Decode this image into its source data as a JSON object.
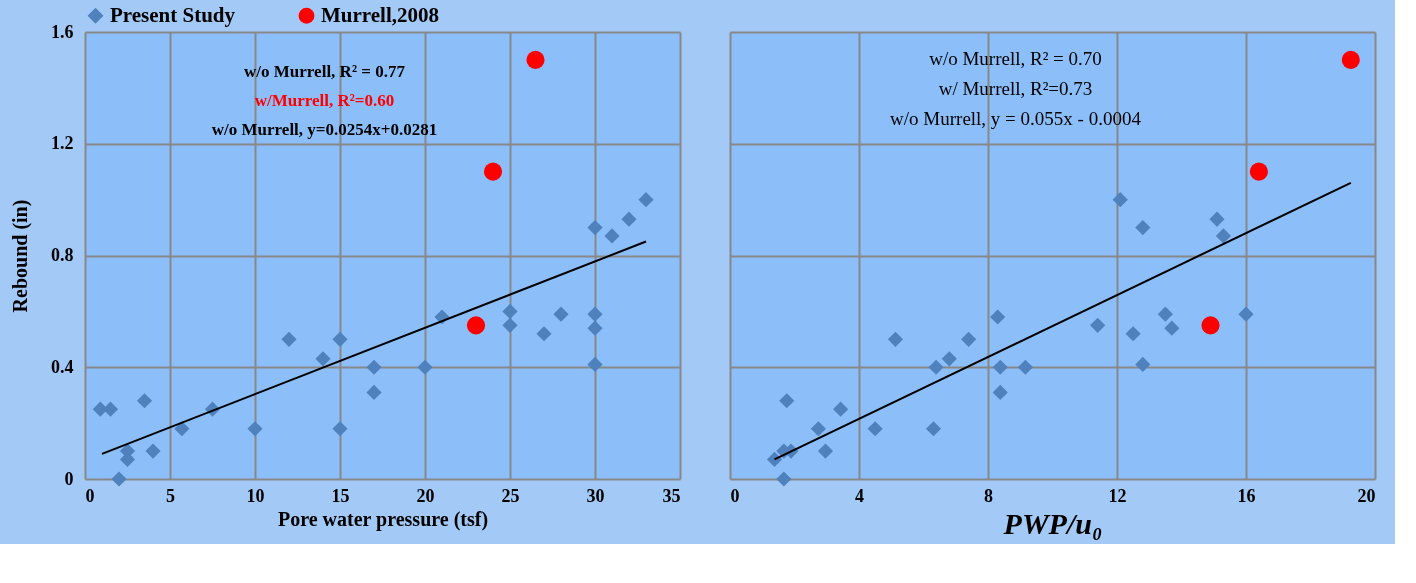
{
  "chart_data": [
    {
      "type": "scatter",
      "xlabel": "Pore water pressure (tsf)",
      "ylabel": "Rebound (in)",
      "xlim": [
        0,
        35
      ],
      "xticks": [
        0,
        5,
        10,
        15,
        20,
        25,
        30,
        35
      ],
      "ylim": [
        0,
        1.6
      ],
      "yticks": [
        0,
        0.4,
        0.8,
        1.2,
        1.6
      ],
      "grid": true,
      "legend": "top",
      "annotations": [
        "w/o Murrell, R² = 0.77",
        "w/Murrell, R²=0.60",
        "w/o Murrell, y=0.0254x+0.0281"
      ],
      "series": [
        {
          "name": "Present Study",
          "color": "#4f81bd",
          "marker": "diamond",
          "x": [
            0.9,
            1.5,
            3.5,
            2.5,
            2.5,
            4,
            2,
            5.7,
            7.5,
            10,
            12,
            14,
            15,
            15,
            17,
            17,
            20,
            21,
            25,
            25,
            27,
            28,
            30,
            30,
            30,
            30,
            31,
            32,
            33
          ],
          "values": [
            0.25,
            0.25,
            0.28,
            0.1,
            0.07,
            0.1,
            0,
            0.18,
            0.25,
            0.18,
            0.5,
            0.43,
            0.5,
            0.18,
            0.4,
            0.31,
            0.4,
            0.58,
            0.6,
            0.55,
            0.52,
            0.59,
            0.9,
            0.59,
            0.54,
            0.41,
            0.87,
            0.93,
            1.0
          ]
        },
        {
          "name": "Murrell,2008",
          "color": "#ff0000",
          "marker": "circle",
          "x": [
            23,
            24,
            26.5
          ],
          "values": [
            0.55,
            1.1,
            1.5
          ]
        },
        {
          "type": "line",
          "color": "#000000",
          "marker": "none",
          "x": [
            1,
            33
          ],
          "values": [
            0.09,
            0.85
          ]
        }
      ]
    },
    {
      "type": "scatter",
      "xlabel": "PWP/u₀",
      "xlim": [
        0,
        20
      ],
      "xticks": [
        0,
        4,
        8,
        12,
        16,
        20
      ],
      "ylim": [
        0,
        1.6
      ],
      "yticks": [
        0,
        0.4,
        0.8,
        1.2,
        1.6
      ],
      "grid": true,
      "tick_labels": "x",
      "annotations": [
        "w/o Murrell, R² = 0.70",
        "w/ Murrell, R²=0.73",
        "w/o Murrell, y = 0.055x - 0.0004"
      ],
      "series": [
        {
          "color": "#4f81bd",
          "marker": "diamond",
          "x": [
            1.38,
            1.67,
            1.89,
            1.67,
            1.76,
            2.74,
            2.96,
            3.43,
            4.5,
            5.13,
            6.31,
            6.39,
            6.8,
            7.4,
            8.3,
            8.38,
            8.38,
            9.16,
            11.4,
            12.1,
            12.5,
            12.8,
            12.8,
            13.5,
            13.7,
            15.1,
            15.3,
            16.0
          ],
          "values": [
            0.07,
            0.1,
            0.1,
            0,
            0.28,
            0.18,
            0.1,
            0.25,
            0.18,
            0.5,
            0.18,
            0.4,
            0.43,
            0.5,
            0.58,
            0.4,
            0.31,
            0.4,
            0.55,
            1.0,
            0.52,
            0.9,
            0.41,
            0.59,
            0.54,
            0.93,
            0.87,
            0.59
          ]
        },
        {
          "color": "#ff0000",
          "marker": "circle",
          "x": [
            14.9,
            16.4,
            19.25
          ],
          "values": [
            0.55,
            1.1,
            1.5
          ]
        },
        {
          "type": "line",
          "color": "#000000",
          "marker": "none",
          "x": [
            1.38,
            19.25
          ],
          "values": [
            0.07,
            1.06
          ]
        }
      ]
    }
  ]
}
